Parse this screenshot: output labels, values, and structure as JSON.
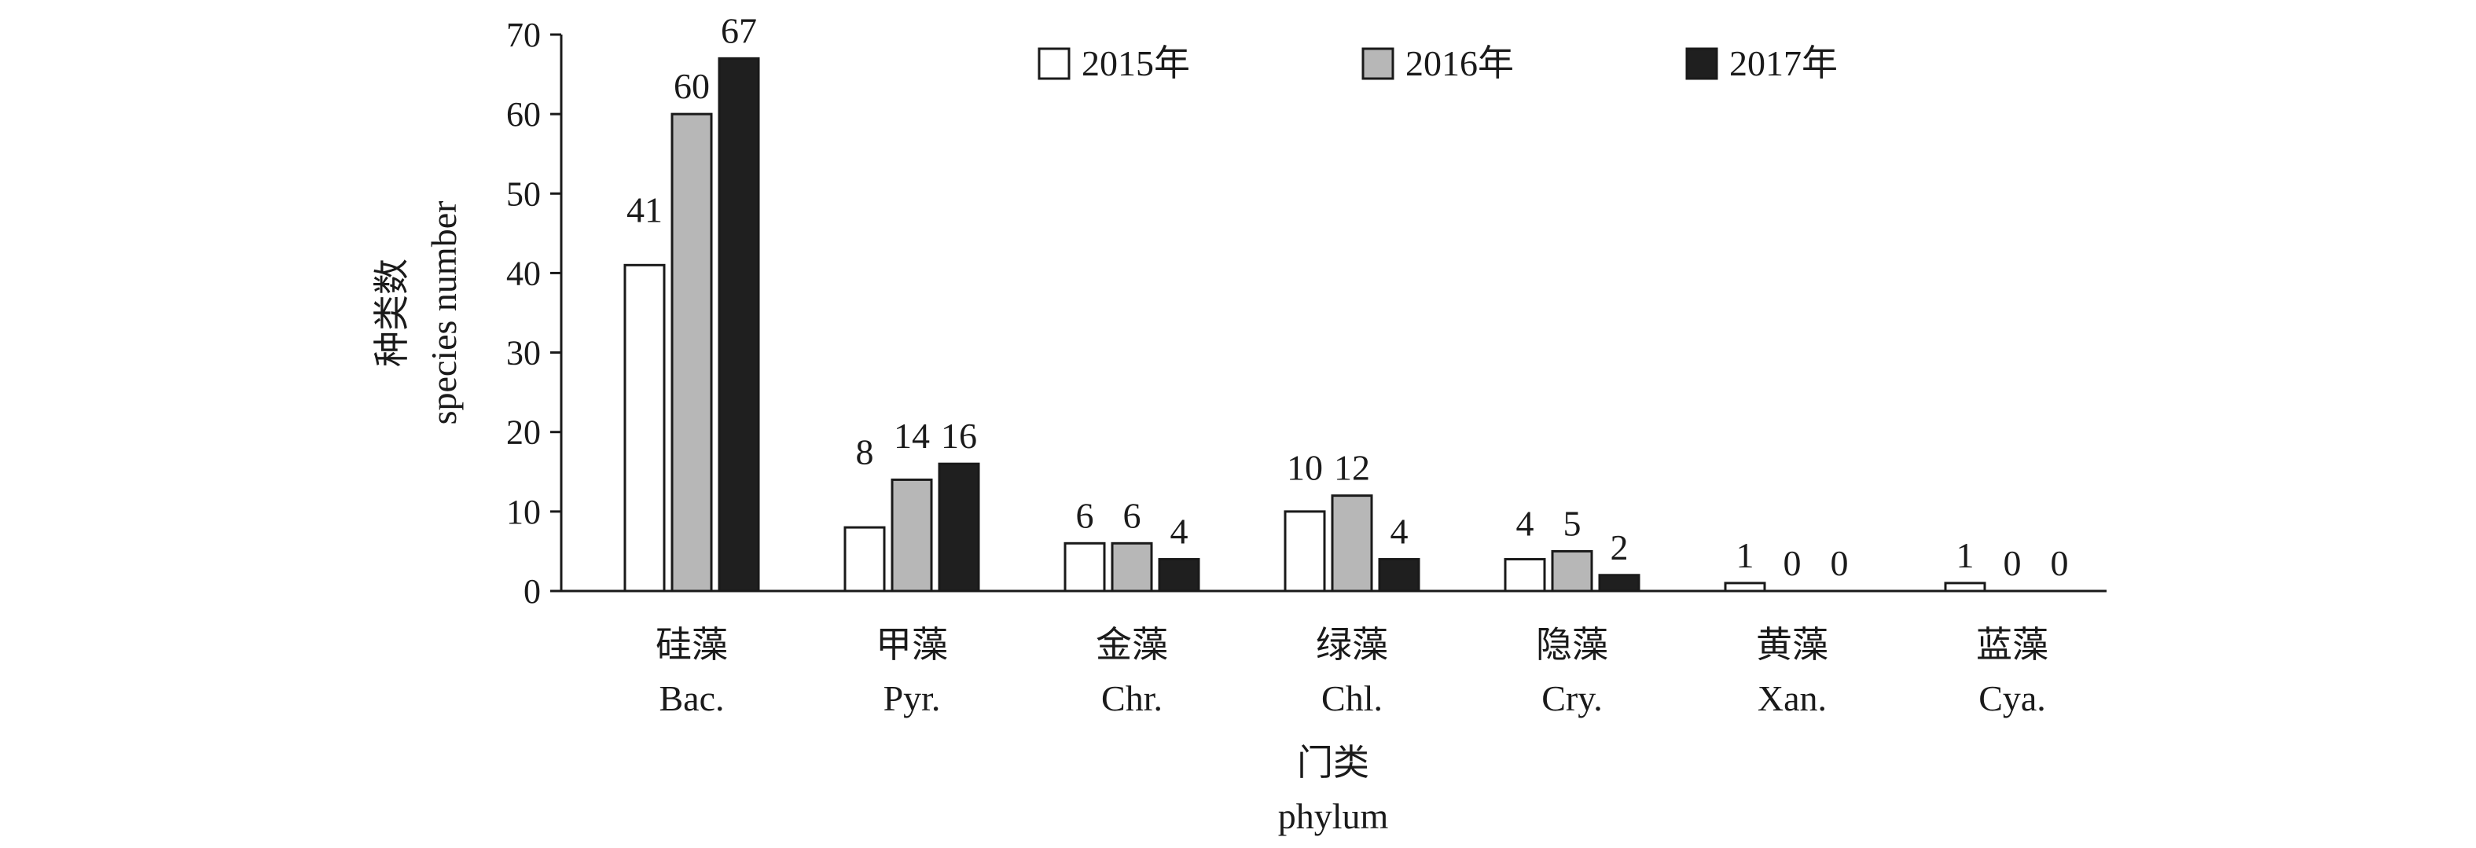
{
  "chart_data": {
    "type": "bar",
    "title": "",
    "ylabel_lines": [
      "种类数",
      "species number"
    ],
    "xlabel_lines": [
      "门类",
      "phylum"
    ],
    "ylim": [
      0,
      70
    ],
    "yticks": [
      0,
      10,
      20,
      30,
      40,
      50,
      60,
      70
    ],
    "categories": [
      {
        "zh": "硅藻",
        "en": "Bac."
      },
      {
        "zh": "甲藻",
        "en": "Pyr."
      },
      {
        "zh": "金藻",
        "en": "Chr."
      },
      {
        "zh": "绿藻",
        "en": "Chl."
      },
      {
        "zh": "隐藻",
        "en": "Cry."
      },
      {
        "zh": "黄藻",
        "en": "Xan."
      },
      {
        "zh": "蓝藻",
        "en": "Cya."
      }
    ],
    "series": [
      {
        "name": "2015年",
        "color": "#ffffff",
        "values": [
          41,
          8,
          6,
          10,
          4,
          1,
          1
        ]
      },
      {
        "name": "2016年",
        "color": "#b7b7b7",
        "values": [
          60,
          14,
          6,
          12,
          5,
          0,
          0
        ]
      },
      {
        "name": "2017年",
        "color": "#1f1f1f",
        "values": [
          67,
          16,
          4,
          4,
          2,
          0,
          0
        ]
      }
    ],
    "legend_position": "top",
    "grid": false,
    "bar_outline_color": "#1a1a1a"
  }
}
